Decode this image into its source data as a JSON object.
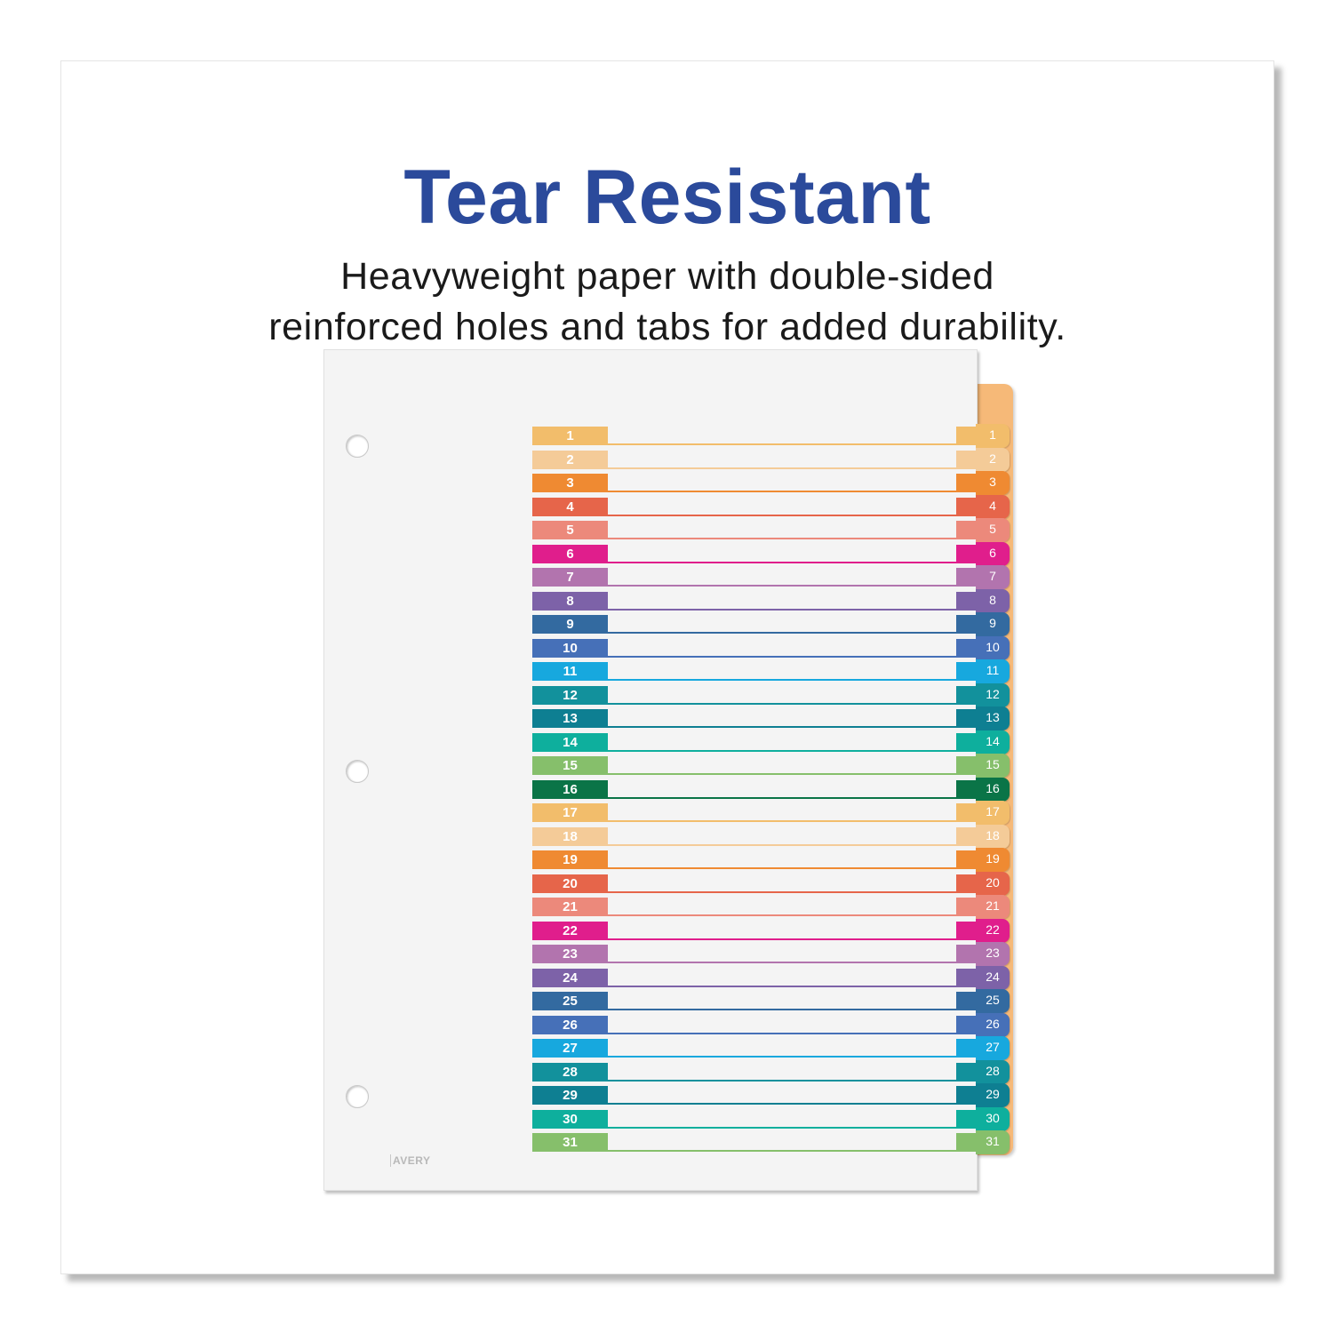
{
  "headline": "Tear Resistant",
  "subtitle": {
    "line1": "Heavyweight paper with double-sided",
    "line2": "reinforced holes and tabs for added durability."
  },
  "product": {
    "brand_logo": "AVERY",
    "tabs": [
      {
        "label": "1",
        "color": "#f2bd6b"
      },
      {
        "label": "2",
        "color": "#f4cb98"
      },
      {
        "label": "3",
        "color": "#ef8a32"
      },
      {
        "label": "4",
        "color": "#e6654a"
      },
      {
        "label": "5",
        "color": "#ec897b"
      },
      {
        "label": "6",
        "color": "#e01e8c"
      },
      {
        "label": "7",
        "color": "#b274ae"
      },
      {
        "label": "8",
        "color": "#7d62a8"
      },
      {
        "label": "9",
        "color": "#336aa0"
      },
      {
        "label": "10",
        "color": "#4670b8"
      },
      {
        "label": "11",
        "color": "#17a8de"
      },
      {
        "label": "12",
        "color": "#12919c"
      },
      {
        "label": "13",
        "color": "#0e7f92"
      },
      {
        "label": "14",
        "color": "#0eaf9d"
      },
      {
        "label": "15",
        "color": "#86bf6b"
      },
      {
        "label": "16",
        "color": "#0a7447"
      },
      {
        "label": "17",
        "color": "#f2bd6b"
      },
      {
        "label": "18",
        "color": "#f4cb98"
      },
      {
        "label": "19",
        "color": "#ef8a32"
      },
      {
        "label": "20",
        "color": "#e6654a"
      },
      {
        "label": "21",
        "color": "#ec897b"
      },
      {
        "label": "22",
        "color": "#e01e8c"
      },
      {
        "label": "23",
        "color": "#b274ae"
      },
      {
        "label": "24",
        "color": "#7d62a8"
      },
      {
        "label": "25",
        "color": "#336aa0"
      },
      {
        "label": "26",
        "color": "#4670b8"
      },
      {
        "label": "27",
        "color": "#17a8de"
      },
      {
        "label": "28",
        "color": "#12919c"
      },
      {
        "label": "29",
        "color": "#0e7f92"
      },
      {
        "label": "30",
        "color": "#0eaf9d"
      },
      {
        "label": "31",
        "color": "#86bf6b"
      }
    ]
  },
  "colors": {
    "headline": "#2b4a9b"
  }
}
